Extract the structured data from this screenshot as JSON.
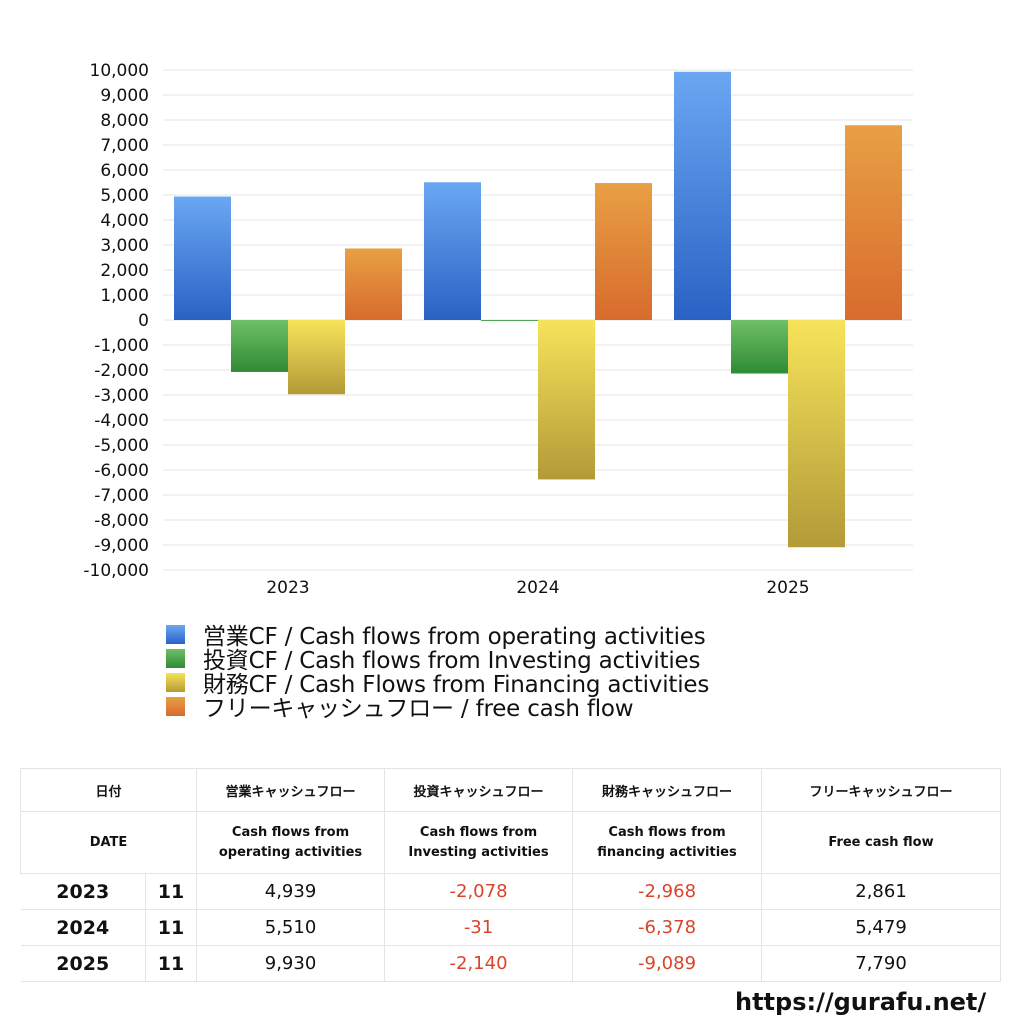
{
  "chart_data": {
    "type": "bar",
    "categories": [
      "2023",
      "2024",
      "2025"
    ],
    "ylim": [
      -10000,
      10000
    ],
    "ytick_step": 1000,
    "grid": true,
    "legend_position": "bottom",
    "series": [
      {
        "name": "営業CF / Cash flows from operating activities",
        "values": [
          4939,
          5510,
          9930
        ],
        "color_top": "#6aa7f2",
        "color_bottom": "#2a62c4"
      },
      {
        "name": "投資CF / Cash flows from Investing activities",
        "values": [
          -2078,
          -31,
          -2140
        ],
        "color_top": "#6fc066",
        "color_bottom": "#2f8a35"
      },
      {
        "name": "財務CF / Cash Flows from Financing activities",
        "values": [
          -2968,
          -6378,
          -9089
        ],
        "color_top": "#f7e35a",
        "color_bottom": "#b39a38"
      },
      {
        "name": "フリーキャッシュフロー / free cash flow",
        "values": [
          2861,
          5479,
          7790
        ],
        "color_top": "#e8a044",
        "color_bottom": "#d86b2d"
      }
    ]
  },
  "table": {
    "headers_jp": [
      "日付",
      "営業キャッシュフロー",
      "投資キャッシュフロー",
      "財務キャッシュフロー",
      "フリーキャッシュフロー"
    ],
    "headers_en": [
      "DATE",
      "Cash flows from\noperating activities",
      "Cash flows from\nInvesting activities",
      "Cash flows from\nfinancing activities",
      "Free cash flow"
    ],
    "rows": [
      {
        "year": "2023",
        "month": "11",
        "operating": "4,939",
        "investing": "-2,078",
        "financing": "-2,968",
        "free": "2,861"
      },
      {
        "year": "2024",
        "month": "11",
        "operating": "5,510",
        "investing": "-31",
        "financing": "-6,378",
        "free": "5,479"
      },
      {
        "year": "2025",
        "month": "11",
        "operating": "9,930",
        "investing": "-2,140",
        "financing": "-9,089",
        "free": "7,790"
      }
    ]
  },
  "footer": {
    "url": "https://gurafu.net/"
  }
}
